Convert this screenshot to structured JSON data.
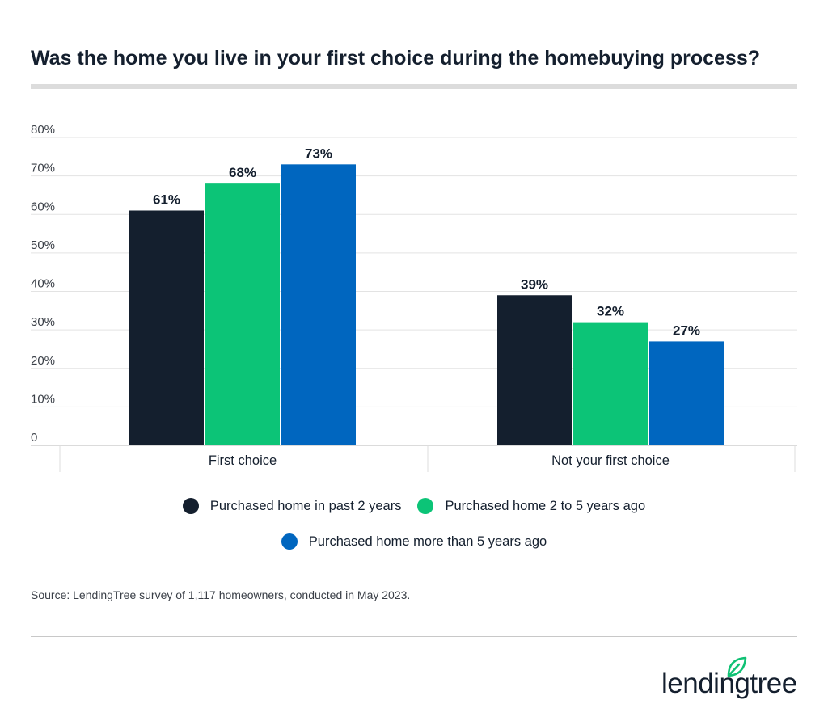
{
  "title": "Was the home you live in your first choice during the homebuying process?",
  "source": "Source: LendingTree survey of 1,117 homeowners, conducted in May 2023.",
  "logo": {
    "text": "lendingtree",
    "icon": "leaf-icon",
    "color": "#0fc174"
  },
  "chart_data": {
    "type": "bar",
    "categories": [
      "First choice",
      "Not your first choice"
    ],
    "series": [
      {
        "name": "Purchased home in past 2 years",
        "values": [
          61,
          39
        ],
        "color": "#141f2e"
      },
      {
        "name": "Purchased home 2 to 5 years ago",
        "values": [
          68,
          32
        ],
        "color": "#0cc477"
      },
      {
        "name": "Purchased home more than 5 years ago",
        "values": [
          73,
          27
        ],
        "color": "#0066bf"
      }
    ],
    "ylim": [
      0,
      80
    ],
    "yticks": [
      0,
      10,
      20,
      30,
      40,
      50,
      60,
      70,
      80
    ],
    "ytick_labels": [
      "0",
      "10%",
      "20%",
      "30%",
      "40%",
      "50%",
      "60%",
      "70%",
      "80%"
    ],
    "value_suffix": "%",
    "grid": true,
    "legend_position": "bottom"
  }
}
